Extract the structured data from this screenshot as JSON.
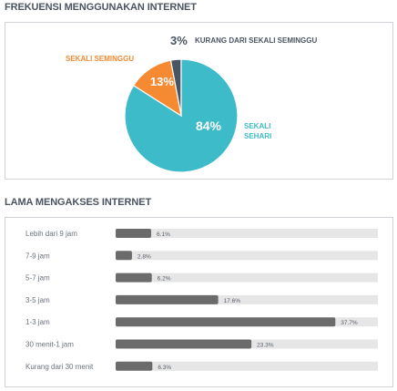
{
  "sections": {
    "frequency_title": "FREKUENSI MENGGUNAKAN INTERNET",
    "duration_title": "LAMA MENGAKSES INTERNET"
  },
  "colors": {
    "daily": "#3ebbc9",
    "weekly": "#f58a33",
    "less_than_weekly": "#4a5563",
    "bar": "#6b6b6b",
    "track": "#e6e6e6",
    "title": "#4a5461"
  },
  "chart_data": [
    {
      "type": "pie",
      "title": "FREKUENSI MENGGUNAKAN INTERNET",
      "slices": [
        {
          "label": "SEKALI SEHARI",
          "label_lines": [
            "SEKALI",
            "SEHARI"
          ],
          "value": 84,
          "value_label": "84%",
          "color": "#3ebbc9"
        },
        {
          "label": "SEKALI SEMINGGU",
          "label_lines": [
            "SEKALI SEMINGGU"
          ],
          "value": 13,
          "value_label": "13%",
          "color": "#f58a33"
        },
        {
          "label": "KURANG DARI SEKALI SEMINGGU",
          "label_lines": [
            "KURANG DARI SEKALI SEMINGGU"
          ],
          "value": 3,
          "value_label": "3%",
          "color": "#4a5563"
        }
      ]
    },
    {
      "type": "bar",
      "orientation": "horizontal",
      "title": "LAMA MENGAKSES INTERNET",
      "categories": [
        "Lebih dari 9 jam",
        "7-9 jam",
        "5-7 jam",
        "3-5 jam",
        "1-3 jam",
        "30 menit-1 jam",
        "Kurang dari 30 menit"
      ],
      "values": [
        6.1,
        2.8,
        6.2,
        17.6,
        37.7,
        23.3,
        6.3
      ],
      "value_labels": [
        "6.1%",
        "2.8%",
        "6.2%",
        "17.6%",
        "37.7%",
        "23.3%",
        "6.3%"
      ],
      "xlim": [
        0,
        45
      ]
    }
  ]
}
